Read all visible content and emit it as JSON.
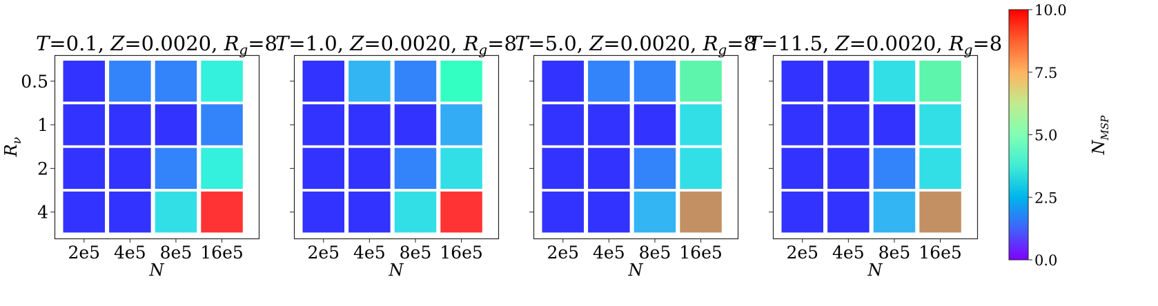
{
  "chart_data": {
    "type": "heatmap",
    "panels": [
      {
        "title": "T = 0.1, Z = 0.0020, R_g = 8",
        "title_parts": {
          "t": "T",
          "t_val": "0.1",
          "z": "Z",
          "z_val": "0.0020",
          "r": "R",
          "r_sub": "g",
          "r_val": "8"
        },
        "xlabel": "N",
        "ylabel": "R_ν",
        "x_categories": [
          "2e5",
          "4e5",
          "8e5",
          "16e5"
        ],
        "y_categories": [
          "0.5",
          "1",
          "2",
          "4"
        ],
        "values": [
          [
            0.0,
            1.3,
            1.3,
            3.8
          ],
          [
            0.0,
            0.0,
            0.0,
            1.3
          ],
          [
            0.0,
            0.0,
            1.3,
            3.8
          ],
          [
            0.0,
            0.0,
            3.2,
            10.0
          ]
        ]
      },
      {
        "title": "T = 1.0, Z = 0.0020, R_g = 8",
        "title_parts": {
          "t": "T",
          "t_val": "1.0",
          "z": "Z",
          "z_val": "0.0020",
          "r": "R",
          "r_sub": "g",
          "r_val": "8"
        },
        "xlabel": "N",
        "ylabel": "",
        "x_categories": [
          "2e5",
          "4e5",
          "8e5",
          "16e5"
        ],
        "y_categories": [
          "0.5",
          "1",
          "2",
          "4"
        ],
        "values": [
          [
            0.0,
            2.2,
            1.3,
            5.0
          ],
          [
            0.0,
            0.0,
            0.0,
            2.0
          ],
          [
            0.0,
            0.0,
            1.3,
            3.2
          ],
          [
            0.0,
            0.0,
            3.2,
            10.0
          ]
        ]
      },
      {
        "title": "T = 5.0, Z = 0.0020, R_g = 8",
        "title_parts": {
          "t": "T",
          "t_val": "5.0",
          "z": "Z",
          "z_val": "0.0020",
          "r": "R",
          "r_sub": "g",
          "r_val": "8"
        },
        "xlabel": "N",
        "ylabel": "",
        "x_categories": [
          "2e5",
          "4e5",
          "8e5",
          "16e5"
        ],
        "y_categories": [
          "0.5",
          "1",
          "2",
          "4"
        ],
        "values": [
          [
            0.0,
            1.3,
            1.3,
            6.0
          ],
          [
            0.0,
            0.0,
            0.0,
            3.2
          ],
          [
            0.0,
            0.0,
            1.3,
            3.2
          ],
          [
            0.0,
            0.0,
            2.2,
            8.5
          ]
        ]
      },
      {
        "title": "T = 11.5, Z = 0.0020, R_g = 8",
        "title_parts": {
          "t": "T",
          "t_val": "11.5",
          "z": "Z",
          "z_val": "0.0020",
          "r": "R",
          "r_sub": "g",
          "r_val": "8"
        },
        "xlabel": "N",
        "ylabel": "",
        "x_categories": [
          "2e5",
          "4e5",
          "8e5",
          "16e5"
        ],
        "y_categories": [
          "0.5",
          "1",
          "2",
          "4"
        ],
        "values": [
          [
            0.0,
            0.0,
            3.2,
            6.0
          ],
          [
            0.0,
            0.0,
            0.0,
            3.2
          ],
          [
            0.0,
            0.0,
            1.3,
            3.2
          ],
          [
            0.0,
            0.0,
            2.2,
            8.5
          ]
        ]
      }
    ],
    "colorbar": {
      "label": "N_MSP",
      "label_main": "N",
      "label_sub": "MSP",
      "colormap": "rainbow",
      "range": [
        0.0,
        10.0
      ],
      "ticks": [
        "0.0",
        "2.5",
        "5.0",
        "7.5",
        "10.0"
      ]
    },
    "cell_alpha": 0.8,
    "grid": false
  }
}
